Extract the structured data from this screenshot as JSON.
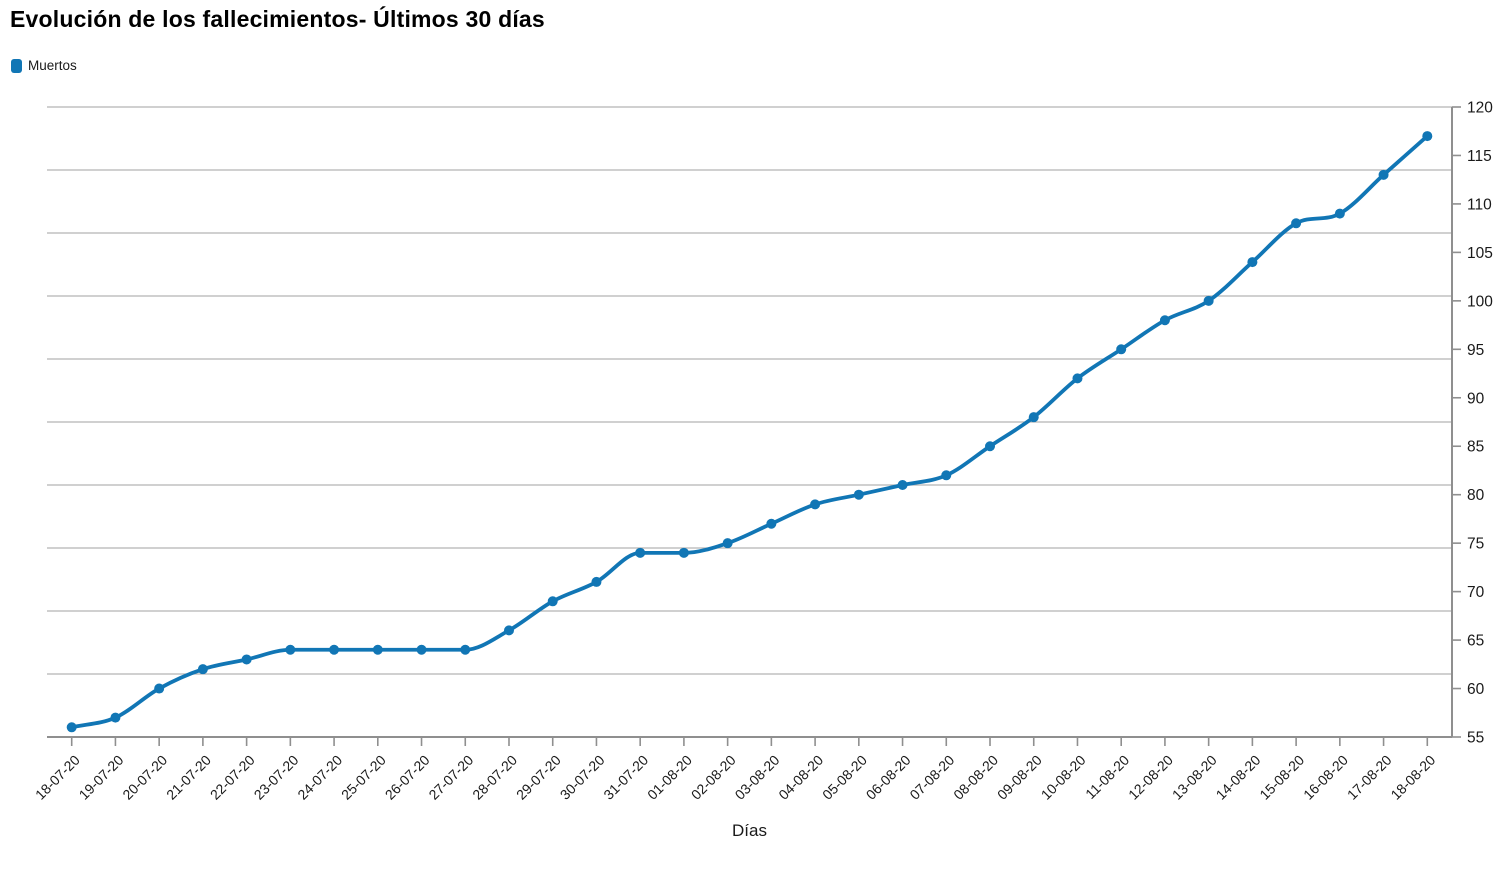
{
  "header": {
    "title": "Evolución de los fallecimientos- Últimos 30 días"
  },
  "legend": {
    "label": "Muertos",
    "swatch_color": "#1176b5"
  },
  "colors": {
    "series_line": "#1176b5",
    "gridline": "#b3b3b3",
    "axis_line": "#8f8f8f",
    "tick_label": "#1a1a1a"
  },
  "chart_data": {
    "type": "line",
    "title": "Evolución de los fallecimientos- Últimos 30 días",
    "series_name": "Muertos",
    "xlabel": "Días",
    "ylabel": "",
    "categories": [
      "18-07-20",
      "19-07-20",
      "20-07-20",
      "21-07-20",
      "22-07-20",
      "23-07-20",
      "24-07-20",
      "25-07-20",
      "26-07-20",
      "27-07-20",
      "28-07-20",
      "29-07-20",
      "30-07-20",
      "31-07-20",
      "01-08-20",
      "02-08-20",
      "03-08-20",
      "04-08-20",
      "05-08-20",
      "06-08-20",
      "07-08-20",
      "08-08-20",
      "09-08-20",
      "10-08-20",
      "11-08-20",
      "12-08-20",
      "13-08-20",
      "14-08-20",
      "15-08-20",
      "16-08-20",
      "17-08-20",
      "18-08-20"
    ],
    "values": [
      56,
      57,
      60,
      62,
      63,
      64,
      64,
      64,
      64,
      64,
      66,
      69,
      71,
      74,
      74,
      75,
      77,
      79,
      80,
      81,
      82,
      85,
      88,
      92,
      95,
      98,
      100,
      104,
      108,
      109,
      113,
      117
    ],
    "ylim": [
      55,
      120
    ],
    "y_ticks": [
      55,
      60,
      65,
      70,
      75,
      80,
      85,
      90,
      95,
      100,
      105,
      110,
      115,
      120
    ],
    "y_axis_side": "right",
    "grid": "horizontal",
    "gridline_divisions": 10,
    "legend_position": "top-left",
    "marker": "circle",
    "line_smoothing": "monotone"
  }
}
